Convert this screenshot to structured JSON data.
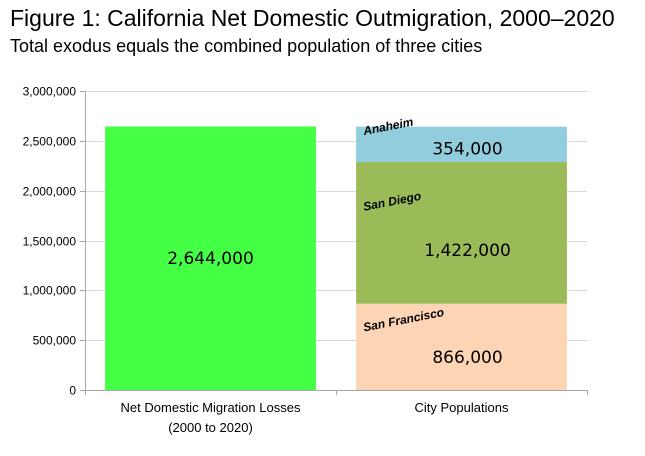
{
  "title": "Figure 1: California Net Domestic Outmigration, 2000–2020",
  "subtitle": "Total exodus equals the combined population of three cities",
  "chart_data": {
    "type": "bar",
    "stacked": true,
    "ylim": [
      0,
      3000000
    ],
    "y_ticks": [
      0,
      500000,
      1000000,
      1500000,
      2000000,
      2500000,
      3000000
    ],
    "y_tick_labels": [
      "0",
      "500,000",
      "1,000,000",
      "1,500,000",
      "2,000,000",
      "2,500,000",
      "3,000,000"
    ],
    "grid": true,
    "categories": [
      [
        "Net Domestic Migration Losses",
        "(2000 to 2020)"
      ],
      [
        "City Populations"
      ]
    ],
    "bars": [
      {
        "category_index": 0,
        "segments": [
          {
            "name": "",
            "value": 2644000,
            "value_label": "2,644,000",
            "color": "#44ff44"
          }
        ]
      },
      {
        "category_index": 1,
        "segments": [
          {
            "name": "San Francisco",
            "value": 866000,
            "value_label": "866,000",
            "color": "#fdd5b5"
          },
          {
            "name": "San Diego",
            "value": 1422000,
            "value_label": "1,422,000",
            "color": "#9bbb59"
          },
          {
            "name": "Anaheim",
            "value": 354000,
            "value_label": "354,000",
            "color": "#92cddd"
          }
        ]
      }
    ]
  }
}
